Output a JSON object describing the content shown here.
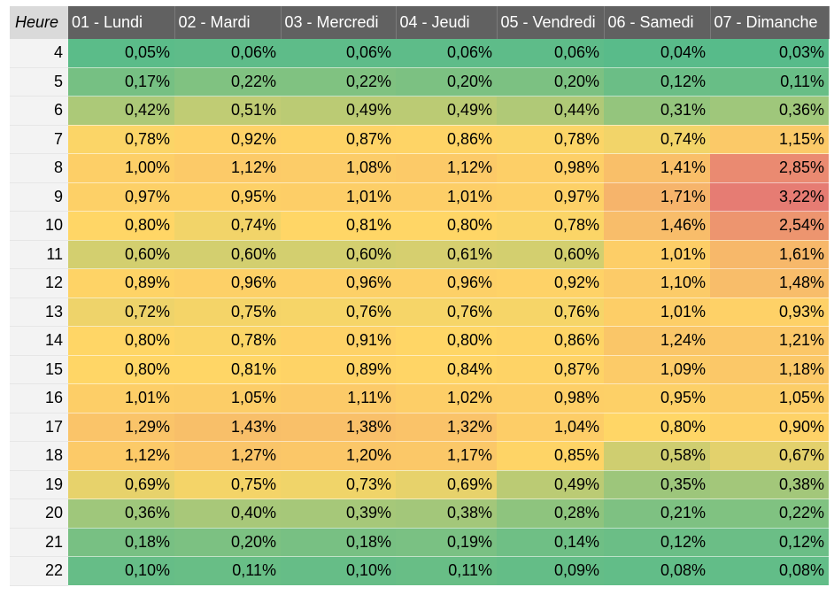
{
  "table": {
    "corner_label": "Heure",
    "columns": [
      "01 - Lundi",
      "02 - Mardi",
      "03 - Mercredi",
      "04 - Jeudi",
      "05 - Vendredi",
      "06 - Samedi",
      "07 - Dimanche"
    ],
    "rows": [
      {
        "hour": "4",
        "values": [
          "0,05%",
          "0,06%",
          "0,06%",
          "0,06%",
          "0,06%",
          "0,04%",
          "0,03%"
        ]
      },
      {
        "hour": "5",
        "values": [
          "0,17%",
          "0,22%",
          "0,22%",
          "0,20%",
          "0,20%",
          "0,12%",
          "0,11%"
        ]
      },
      {
        "hour": "6",
        "values": [
          "0,42%",
          "0,51%",
          "0,49%",
          "0,49%",
          "0,44%",
          "0,31%",
          "0,36%"
        ]
      },
      {
        "hour": "7",
        "values": [
          "0,78%",
          "0,92%",
          "0,87%",
          "0,86%",
          "0,78%",
          "0,74%",
          "1,15%"
        ]
      },
      {
        "hour": "8",
        "values": [
          "1,00%",
          "1,12%",
          "1,08%",
          "1,12%",
          "0,98%",
          "1,41%",
          "2,85%"
        ]
      },
      {
        "hour": "9",
        "values": [
          "0,97%",
          "0,95%",
          "1,01%",
          "1,01%",
          "0,97%",
          "1,71%",
          "3,22%"
        ]
      },
      {
        "hour": "10",
        "values": [
          "0,80%",
          "0,74%",
          "0,81%",
          "0,80%",
          "0,78%",
          "1,46%",
          "2,54%"
        ]
      },
      {
        "hour": "11",
        "values": [
          "0,60%",
          "0,60%",
          "0,60%",
          "0,61%",
          "0,60%",
          "1,01%",
          "1,61%"
        ]
      },
      {
        "hour": "12",
        "values": [
          "0,89%",
          "0,96%",
          "0,96%",
          "0,96%",
          "0,92%",
          "1,10%",
          "1,48%"
        ]
      },
      {
        "hour": "13",
        "values": [
          "0,72%",
          "0,75%",
          "0,76%",
          "0,76%",
          "0,76%",
          "1,01%",
          "0,93%"
        ]
      },
      {
        "hour": "14",
        "values": [
          "0,80%",
          "0,78%",
          "0,91%",
          "0,80%",
          "0,86%",
          "1,24%",
          "1,21%"
        ]
      },
      {
        "hour": "15",
        "values": [
          "0,80%",
          "0,81%",
          "0,89%",
          "0,84%",
          "0,87%",
          "1,09%",
          "1,18%"
        ]
      },
      {
        "hour": "16",
        "values": [
          "1,01%",
          "1,05%",
          "1,11%",
          "1,02%",
          "0,98%",
          "0,95%",
          "1,05%"
        ]
      },
      {
        "hour": "17",
        "values": [
          "1,29%",
          "1,43%",
          "1,38%",
          "1,32%",
          "1,04%",
          "0,80%",
          "0,90%"
        ]
      },
      {
        "hour": "18",
        "values": [
          "1,12%",
          "1,27%",
          "1,20%",
          "1,17%",
          "0,85%",
          "0,58%",
          "0,67%"
        ]
      },
      {
        "hour": "19",
        "values": [
          "0,69%",
          "0,75%",
          "0,73%",
          "0,69%",
          "0,49%",
          "0,35%",
          "0,38%"
        ]
      },
      {
        "hour": "20",
        "values": [
          "0,36%",
          "0,40%",
          "0,39%",
          "0,38%",
          "0,28%",
          "0,21%",
          "0,22%"
        ]
      },
      {
        "hour": "21",
        "values": [
          "0,18%",
          "0,20%",
          "0,18%",
          "0,19%",
          "0,14%",
          "0,12%",
          "0,12%"
        ]
      },
      {
        "hour": "22",
        "values": [
          "0,10%",
          "0,11%",
          "0,10%",
          "0,11%",
          "0,09%",
          "0,08%",
          "0,08%"
        ]
      }
    ]
  },
  "colors": {
    "header_bg": "#616161",
    "header_text": "#ffffff",
    "corner_bg": "#dadada",
    "hour_col_bg": "#f3f3f3",
    "scale_low": "#57bb8a",
    "scale_mid": "#ffd666",
    "scale_high": "#e67c73"
  }
}
